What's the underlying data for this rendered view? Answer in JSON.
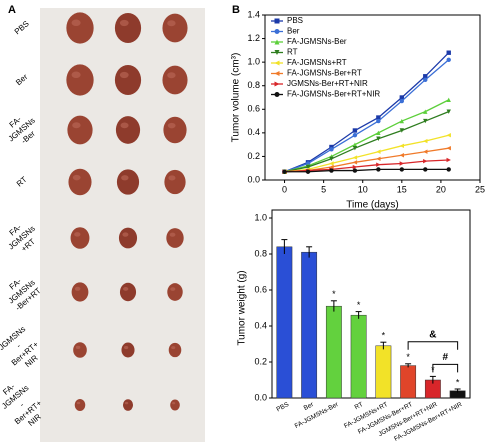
{
  "photo_panel": {
    "label": "A",
    "rows": [
      [
        "PBS"
      ],
      [
        "Ber"
      ],
      [
        "FA-",
        "JGMSNs",
        "-Ber"
      ],
      [
        "RT"
      ],
      [
        "FA-",
        "JGMSNs",
        "+RT"
      ],
      [
        "FA-",
        "JGMSNs",
        "-Ber+RT"
      ],
      [
        "JGMSNs",
        "-",
        "Ber+RT+",
        "NIR"
      ],
      [
        "FA-",
        "JGMSNs",
        "-",
        "Ber+RT+",
        "NIR"
      ]
    ]
  },
  "chart_data": [
    {
      "type": "line",
      "panel": "B",
      "x_label": "Time (days)",
      "y_label": "Tumor volume (cm³)",
      "x": [
        0,
        3,
        6,
        9,
        12,
        15,
        18,
        21
      ],
      "xlim": [
        -2.5,
        25
      ],
      "xticks": [
        0,
        5,
        10,
        15,
        20,
        25
      ],
      "ylim": [
        0,
        1.4
      ],
      "yticks": [
        {
          "value": 0,
          "label": "0.0"
        },
        0.2,
        0.4,
        0.6,
        0.8,
        {
          "value": 1,
          "label": "1.0"
        },
        1.2,
        1.4
      ],
      "legend": "top-left",
      "series": [
        {
          "name": "PBS",
          "color": "#1c3aa9",
          "marker": "square",
          "values": [
            0.07,
            0.15,
            0.28,
            0.42,
            0.53,
            0.7,
            0.88,
            1.08
          ]
        },
        {
          "name": "Ber",
          "color": "#3b6fd6",
          "marker": "circle",
          "values": [
            0.07,
            0.14,
            0.26,
            0.38,
            0.5,
            0.67,
            0.85,
            1.02
          ]
        },
        {
          "name": "FA-JGMSNs-Ber",
          "color": "#5ccf3a",
          "marker": "triangle-up",
          "values": [
            0.07,
            0.12,
            0.2,
            0.3,
            0.4,
            0.5,
            0.58,
            0.68
          ]
        },
        {
          "name": "RT",
          "color": "#2e7d1f",
          "marker": "triangle-down",
          "values": [
            0.07,
            0.11,
            0.18,
            0.27,
            0.35,
            0.42,
            0.5,
            0.58
          ]
        },
        {
          "name": "FA-JGMSNs+RT",
          "color": "#f2e228",
          "marker": "triangle-left",
          "values": [
            0.07,
            0.09,
            0.14,
            0.19,
            0.24,
            0.29,
            0.33,
            0.38
          ]
        },
        {
          "name": "FA-JGMSNs-Ber+RT",
          "color": "#f07a2a",
          "marker": "triangle-left",
          "values": [
            0.07,
            0.08,
            0.11,
            0.15,
            0.18,
            0.21,
            0.24,
            0.27
          ]
        },
        {
          "name": "JGMSNs-Ber+RT+NIR",
          "color": "#d8262a",
          "marker": "triangle-right",
          "values": [
            0.07,
            0.08,
            0.09,
            0.11,
            0.13,
            0.14,
            0.16,
            0.17
          ]
        },
        {
          "name": "FA-JGMSNs-Ber+RT+NIR",
          "color": "#111111",
          "marker": "circle",
          "values": [
            0.07,
            0.07,
            0.08,
            0.08,
            0.09,
            0.09,
            0.09,
            0.09
          ]
        }
      ]
    },
    {
      "type": "bar",
      "y_label": "Tumor weight (g)",
      "categories": [
        "PBS",
        "Ber",
        "FA-JGMSNs-Ber",
        "RT",
        "FA-JGMSNs+RT",
        "FA-JGMSNs-Ber+RT",
        "JGMSNs-Ber+RT+NIR",
        "FA-JGMSNs-Ber+RT+NIR"
      ],
      "values": [
        0.84,
        0.81,
        0.51,
        0.46,
        0.29,
        0.18,
        0.1,
        0.04
      ],
      "errors": [
        0.04,
        0.03,
        0.03,
        0.02,
        0.02,
        0.01,
        0.02,
        0.01
      ],
      "colors": [
        "#2a4fd6",
        "#2a4fd6",
        "#63d13e",
        "#63d13e",
        "#f2e228",
        "#e0452a",
        "#d8262a",
        "#111111"
      ],
      "markers": [
        null,
        null,
        "*",
        "*",
        "*",
        "*",
        "*",
        "*"
      ],
      "annotations": [
        "&",
        "#"
      ],
      "ylim": [
        0,
        1
      ],
      "yticks": [
        {
          "value": 0,
          "label": "0.0"
        },
        0.2,
        0.4,
        0.6,
        0.8,
        {
          "value": 1,
          "label": "1.0"
        }
      ]
    }
  ]
}
